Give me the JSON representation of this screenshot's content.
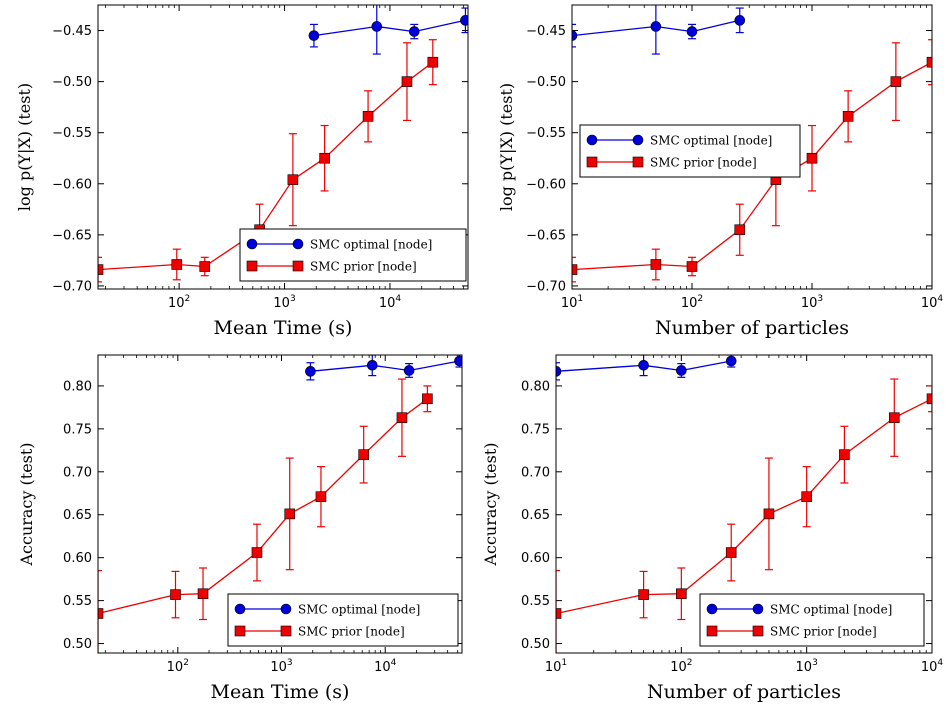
{
  "colors": {
    "optimal": "#0000dd",
    "prior": "#ee0000"
  },
  "legend": {
    "optimal": "SMC optimal [node]",
    "prior": "SMC prior [node]"
  },
  "chart_data": [
    {
      "type": "line",
      "xscale": "log",
      "xlabel": "Mean Time (s)",
      "ylabel": "log p(Y|X) (test)",
      "xlim": [
        17,
        55000
      ],
      "ylim": [
        -0.703,
        -0.425
      ],
      "xticks": [
        {
          "v": 100,
          "exp": "2"
        },
        {
          "v": 1000,
          "exp": "3"
        },
        {
          "v": 10000,
          "exp": "4"
        }
      ],
      "yticks": [
        {
          "v": -0.45,
          "t": "−0.45"
        },
        {
          "v": -0.5,
          "t": "−0.50"
        },
        {
          "v": -0.55,
          "t": "−0.55"
        },
        {
          "v": -0.6,
          "t": "−0.60"
        },
        {
          "v": -0.65,
          "t": "−0.65"
        },
        {
          "v": -0.7,
          "t": "−0.70"
        }
      ],
      "legend_position": "lower-right",
      "series": [
        {
          "name": "SMC optimal [node]",
          "key": "optimal",
          "marker": "circle",
          "x": [
            1900,
            7500,
            17000,
            52000
          ],
          "y": [
            -0.455,
            -0.446,
            -0.451,
            -0.44
          ],
          "err": [
            0.011,
            0.027,
            0.007,
            0.012
          ]
        },
        {
          "name": "SMC prior [node]",
          "key": "prior",
          "marker": "square",
          "x": [
            17,
            95,
            175,
            580,
            1200,
            2400,
            6200,
            14500,
            25500
          ],
          "y": [
            -0.684,
            -0.679,
            -0.681,
            -0.645,
            -0.596,
            -0.575,
            -0.534,
            -0.5,
            -0.481
          ],
          "err": [
            0.012,
            0.015,
            0.009,
            0.025,
            0.045,
            0.032,
            0.025,
            0.038,
            0.022
          ]
        }
      ]
    },
    {
      "type": "line",
      "xscale": "log",
      "xlabel": "Number of particles",
      "ylabel": "log p(Y|X) (test)",
      "xlim": [
        10,
        10000
      ],
      "ylim": [
        -0.703,
        -0.425
      ],
      "xticks": [
        {
          "v": 10,
          "exp": "1"
        },
        {
          "v": 100,
          "exp": "2"
        },
        {
          "v": 1000,
          "exp": "3"
        },
        {
          "v": 10000,
          "exp": "4"
        }
      ],
      "yticks": [
        {
          "v": -0.45,
          "t": "−0.45"
        },
        {
          "v": -0.5,
          "t": "−0.50"
        },
        {
          "v": -0.55,
          "t": "−0.55"
        },
        {
          "v": -0.6,
          "t": "−0.60"
        },
        {
          "v": -0.65,
          "t": "−0.65"
        },
        {
          "v": -0.7,
          "t": "−0.70"
        }
      ],
      "legend_position": "center-left",
      "series": [
        {
          "name": "SMC optimal [node]",
          "key": "optimal",
          "marker": "circle",
          "x": [
            10,
            50,
            100,
            250
          ],
          "y": [
            -0.455,
            -0.446,
            -0.451,
            -0.44
          ],
          "err": [
            0.011,
            0.027,
            0.007,
            0.012
          ]
        },
        {
          "name": "SMC prior [node]",
          "key": "prior",
          "marker": "square",
          "x": [
            10,
            50,
            100,
            250,
            500,
            1000,
            2000,
            5000,
            10000
          ],
          "y": [
            -0.684,
            -0.679,
            -0.681,
            -0.645,
            -0.596,
            -0.575,
            -0.534,
            -0.5,
            -0.481
          ],
          "err": [
            0.012,
            0.015,
            0.009,
            0.025,
            0.045,
            0.032,
            0.025,
            0.038,
            0.022
          ]
        }
      ]
    },
    {
      "type": "line",
      "xscale": "log",
      "xlabel": "Mean Time (s)",
      "ylabel": "Accuracy (test)",
      "xlim": [
        17,
        55000
      ],
      "ylim": [
        0.489,
        0.836
      ],
      "xticks": [
        {
          "v": 100,
          "exp": "2"
        },
        {
          "v": 1000,
          "exp": "3"
        },
        {
          "v": 10000,
          "exp": "4"
        }
      ],
      "yticks": [
        {
          "v": 0.5,
          "t": "0.50"
        },
        {
          "v": 0.55,
          "t": "0.55"
        },
        {
          "v": 0.6,
          "t": "0.60"
        },
        {
          "v": 0.65,
          "t": "0.65"
        },
        {
          "v": 0.7,
          "t": "0.70"
        },
        {
          "v": 0.75,
          "t": "0.75"
        },
        {
          "v": 0.8,
          "t": "0.80"
        }
      ],
      "legend_position": "lower-right",
      "series": [
        {
          "name": "SMC optimal [node]",
          "key": "optimal",
          "marker": "circle",
          "x": [
            1900,
            7500,
            17000,
            52000
          ],
          "y": [
            0.817,
            0.824,
            0.818,
            0.829
          ],
          "err": [
            0.01,
            0.012,
            0.008,
            0.007
          ]
        },
        {
          "name": "SMC prior [node]",
          "key": "prior",
          "marker": "square",
          "x": [
            17,
            95,
            175,
            580,
            1200,
            2400,
            6200,
            14500,
            25500
          ],
          "y": [
            0.535,
            0.557,
            0.558,
            0.606,
            0.651,
            0.671,
            0.72,
            0.763,
            0.785
          ],
          "err": [
            0.05,
            0.027,
            0.03,
            0.033,
            0.065,
            0.035,
            0.033,
            0.045,
            0.015
          ]
        }
      ]
    },
    {
      "type": "line",
      "xscale": "log",
      "xlabel": "Number of particles",
      "ylabel": "Accuracy (test)",
      "xlim": [
        10,
        10000
      ],
      "ylim": [
        0.489,
        0.836
      ],
      "xticks": [
        {
          "v": 10,
          "exp": "1"
        },
        {
          "v": 100,
          "exp": "2"
        },
        {
          "v": 1000,
          "exp": "3"
        },
        {
          "v": 10000,
          "exp": "4"
        }
      ],
      "yticks": [
        {
          "v": 0.5,
          "t": "0.50"
        },
        {
          "v": 0.55,
          "t": "0.55"
        },
        {
          "v": 0.6,
          "t": "0.60"
        },
        {
          "v": 0.65,
          "t": "0.65"
        },
        {
          "v": 0.7,
          "t": "0.70"
        },
        {
          "v": 0.75,
          "t": "0.75"
        },
        {
          "v": 0.8,
          "t": "0.80"
        }
      ],
      "legend_position": "lower-right",
      "series": [
        {
          "name": "SMC optimal [node]",
          "key": "optimal",
          "marker": "circle",
          "x": [
            10,
            50,
            100,
            250
          ],
          "y": [
            0.817,
            0.824,
            0.818,
            0.829
          ],
          "err": [
            0.01,
            0.012,
            0.008,
            0.007
          ]
        },
        {
          "name": "SMC prior [node]",
          "key": "prior",
          "marker": "square",
          "x": [
            10,
            50,
            100,
            250,
            500,
            1000,
            2000,
            5000,
            10000
          ],
          "y": [
            0.535,
            0.557,
            0.558,
            0.606,
            0.651,
            0.671,
            0.72,
            0.763,
            0.785
          ],
          "err": [
            0.05,
            0.027,
            0.03,
            0.033,
            0.065,
            0.035,
            0.033,
            0.045,
            0.015
          ]
        }
      ]
    }
  ]
}
